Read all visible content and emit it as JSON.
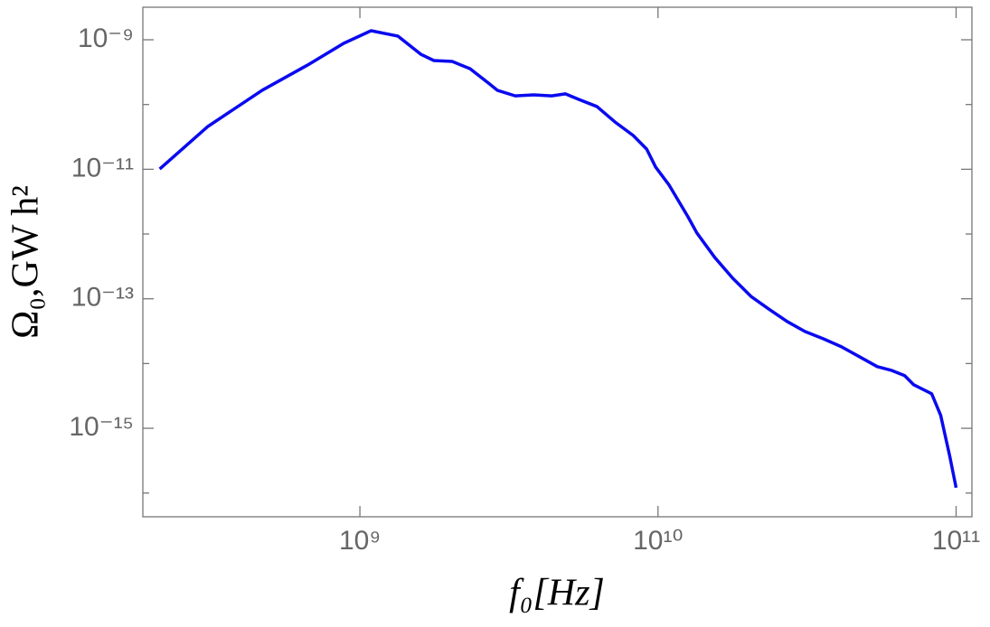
{
  "chart_data": {
    "type": "line",
    "xlabel": "f₀[Hz]",
    "ylabel": "Ω₀,GW h²",
    "xscale": "log",
    "yscale": "log",
    "xlim": [
      187000000.0,
      113000000000.0
    ],
    "ylim": [
      4.3e-17,
      3.18e-09
    ],
    "xticks": [
      {
        "value": 1000000000.0,
        "label": "10⁹"
      },
      {
        "value": 10000000000.0,
        "label": "10¹⁰"
      },
      {
        "value": 100000000000.0,
        "label": "10¹¹"
      }
    ],
    "yticks": [
      {
        "value": 1e-09,
        "label": "10⁻⁹"
      },
      {
        "value": 1e-11,
        "label": "10⁻¹¹"
      },
      {
        "value": 1e-13,
        "label": "10⁻¹³"
      },
      {
        "value": 1e-15,
        "label": "10⁻¹⁵"
      }
    ],
    "yminorticks": [
      1e-10,
      1e-12,
      1e-14,
      1e-16
    ],
    "series": [
      {
        "color": "#0a0af0",
        "x": [
          213000000.0,
          309000000.0,
          470000000.0,
          667000000.0,
          882000000.0,
          1090000000.0,
          1340000000.0,
          1600000000.0,
          1770000000.0,
          2040000000.0,
          2340000000.0,
          2700000000.0,
          2890000000.0,
          3320000000.0,
          3830000000.0,
          4400000000.0,
          4890000000.0,
          5420000000.0,
          6240000000.0,
          7170000000.0,
          8260000000.0,
          9160000000.0,
          9820000000.0,
          10900000000.0,
          12600000000.0,
          13500000000.0,
          15500000000.0,
          17800000000.0,
          20500000000.0,
          23500000000.0,
          27100000000.0,
          31100000000.0,
          35800000000.0,
          41200000000.0,
          47300000000.0,
          54400000000.0,
          60500000000.0,
          67200000000.0,
          72000000000.0,
          82800000000.0,
          88800000000.0,
          95200000000.0,
          100000000000.0
        ],
        "values": [
          1.01e-11,
          4.58e-11,
          1.66e-10,
          4.06e-10,
          8.8e-10,
          1.38e-09,
          1.14e-09,
          5.98e-10,
          4.78e-10,
          4.62e-10,
          3.58e-10,
          2.14e-10,
          1.66e-10,
          1.36e-10,
          1.41e-10,
          1.36e-10,
          1.46e-10,
          1.2e-10,
          9.3e-11,
          5.38e-11,
          3.32e-11,
          2.05e-11,
          1.08e-11,
          5.68e-12,
          1.85e-12,
          1.04e-12,
          4.35e-13,
          2.08e-13,
          1.09e-13,
          6.98e-14,
          4.46e-14,
          3.13e-14,
          2.42e-14,
          1.82e-14,
          1.28e-14,
          8.95e-15,
          7.88e-15,
          6.5e-15,
          4.72e-15,
          3.42e-15,
          1.58e-15,
          3.72e-16,
          1.21e-16
        ]
      }
    ]
  }
}
